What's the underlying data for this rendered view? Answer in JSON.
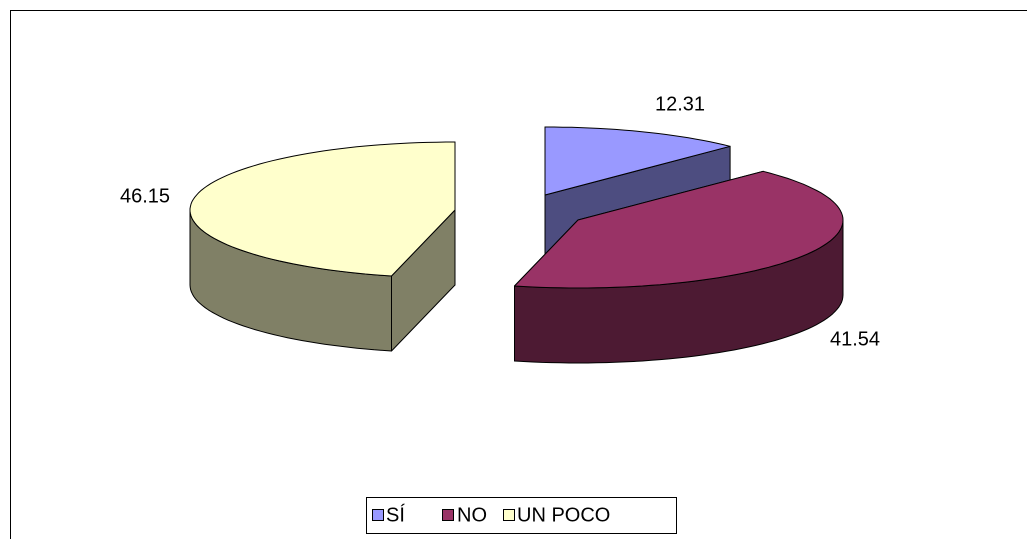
{
  "chart_data": {
    "type": "pie3d",
    "categories": [
      "SÍ",
      "NO",
      "UN POCO"
    ],
    "values": [
      12.31,
      41.54,
      46.15
    ],
    "colors": [
      "#9999ff",
      "#993366",
      "#ffffcc"
    ],
    "legend": "bottom"
  }
}
